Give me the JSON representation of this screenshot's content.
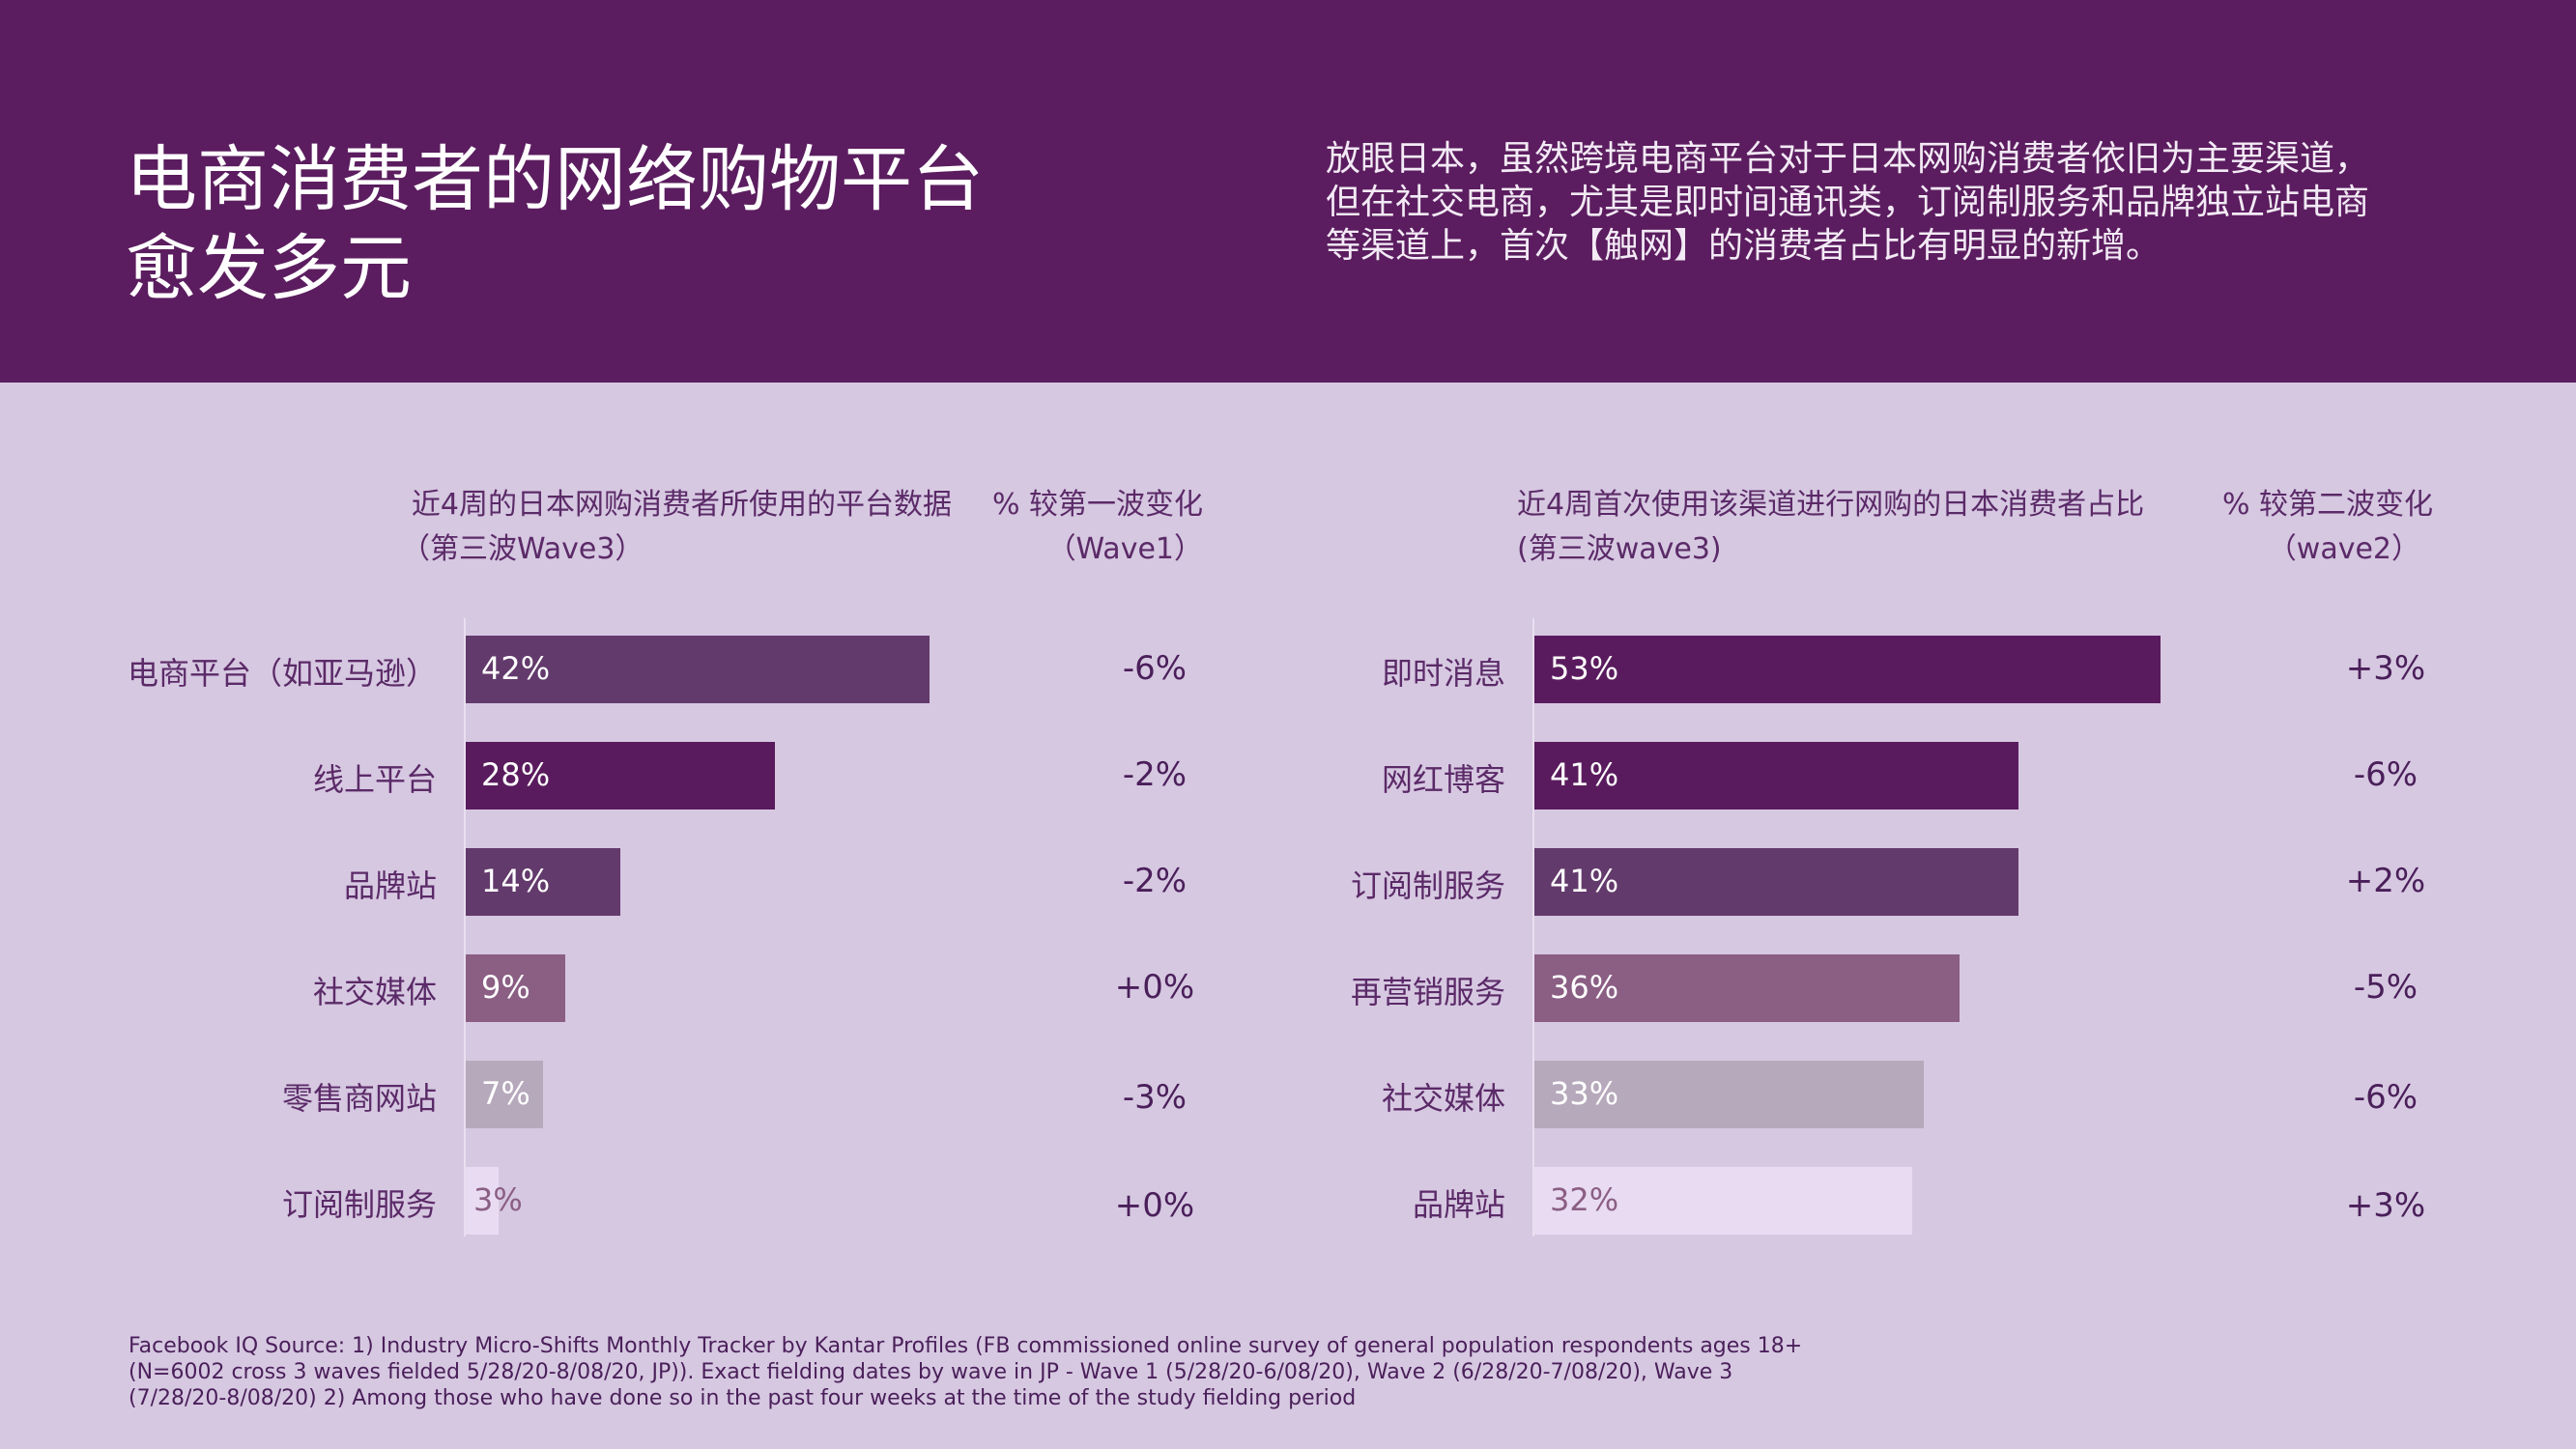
{
  "header": {
    "title_lines": [
      "电商消费者的网络购物平台",
      "愈发多元"
    ],
    "summary_lines": [
      "放眼日本，虽然跨境电商平台对于日本网购消费者依旧为主要渠道，",
      "但在社交电商，尤其是即时间通讯类，订阅制服务和品牌独立站电商",
      "等渠道上，首次【触网】的消费者占比有明显的新增。"
    ]
  },
  "colors": {
    "header_bg": "#5b1d5f",
    "page_bg": "#d6c8e1"
  },
  "chart_data": [
    {
      "type": "bar",
      "orientation": "horizontal",
      "title_lines": [
        "近4周的日本网购消费者所使用的平台数据",
        "（第三波Wave3）"
      ],
      "change_header_lines": [
        "% 较第一波变化",
        "（Wave1）"
      ],
      "categories": [
        "电商平台（如亚马逊）",
        "线上平台",
        "品牌站",
        "社交媒体",
        "零售商网站",
        "订阅制服务"
      ],
      "values": [
        42,
        28,
        14,
        9,
        7,
        3
      ],
      "value_labels": [
        "42%",
        "28%",
        "14%",
        "9%",
        "7%",
        "3%"
      ],
      "changes": [
        "-6%",
        "-2%",
        "-2%",
        "+0%",
        "-3%",
        "+0%"
      ],
      "bar_colors": [
        "#633a6c",
        "#5a1b5e",
        "#633a6c",
        "#8b5e84",
        "#b6a9bb",
        "#e9dcf2"
      ],
      "label_colors": [
        "#ffffff",
        "#ffffff",
        "#ffffff",
        "#ffffff",
        "#ffffff",
        "#8b5e84"
      ],
      "xlim": [
        0,
        42
      ]
    },
    {
      "type": "bar",
      "orientation": "horizontal",
      "title_lines": [
        "近4周首次使用该渠道进行网购的日本消费者占比",
        "(第三波wave3)"
      ],
      "change_header_lines": [
        "% 较第二波变化",
        "（wave2）"
      ],
      "categories": [
        "即时消息",
        "网红博客",
        "订阅制服务",
        "再营销服务",
        "社交媒体",
        "品牌站"
      ],
      "values": [
        53,
        41,
        41,
        36,
        33,
        32
      ],
      "value_labels": [
        "53%",
        "41%",
        "41%",
        "36%",
        "33%",
        "32%"
      ],
      "changes": [
        "+3%",
        "-6%",
        "+2%",
        "-5%",
        "-6%",
        "+3%"
      ],
      "bar_colors": [
        "#5a1b5e",
        "#5a1b5e",
        "#633a6c",
        "#8b5e84",
        "#b6a9bb",
        "#e9dcf2"
      ],
      "label_colors": [
        "#ffffff",
        "#ffffff",
        "#ffffff",
        "#ffffff",
        "#ffffff",
        "#8b5e84"
      ],
      "xlim": [
        0,
        53
      ]
    }
  ],
  "source_lines": [
    "Facebook IQ Source: 1) Industry Micro-Shifts Monthly Tracker by Kantar Profiles (FB commissioned online survey of general population respondents ages 18+",
    "(N=6002 cross 3 waves fielded 5/28/20-8/08/20, JP)). Exact fielding dates by wave in JP - Wave 1 (5/28/20-6/08/20), Wave 2 (6/28/20-7/08/20), Wave 3",
    "(7/28/20-8/08/20) 2) Among those who have done so in the past four weeks at the time of the study fielding period"
  ]
}
